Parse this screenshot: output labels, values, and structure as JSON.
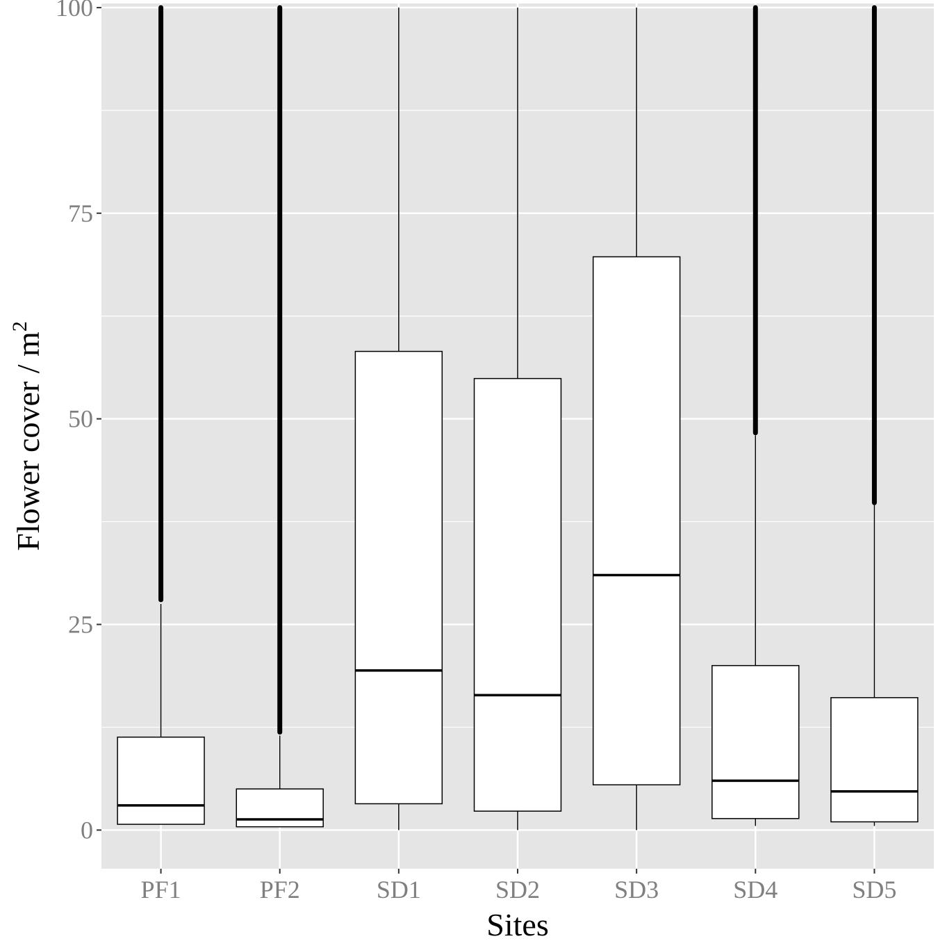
{
  "chart_data": {
    "type": "boxplot",
    "xlabel": "Sites",
    "ylabel": {
      "main": "Flower cover / m",
      "superscript": "2"
    },
    "ylim": [
      -4.7,
      100.5
    ],
    "yticks": [
      0,
      25,
      50,
      75,
      100
    ],
    "yticks_minor": [
      12.5,
      37.5,
      62.5,
      87.5
    ],
    "grid": true,
    "background": "#e5e5e5",
    "gridline_color": "#ffffff",
    "box_fill": "#ffffff",
    "line_color": "#000000",
    "tick_label_color": "#7f7f7f",
    "categories": [
      "PF1",
      "PF2",
      "SD1",
      "SD2",
      "SD3",
      "SD4",
      "SD5"
    ],
    "boxes": [
      {
        "site": "PF1",
        "whisker_low": 0.7,
        "q1": 0.7,
        "median": 3.0,
        "q3": 11.3,
        "whisker_high": 27.5,
        "outliers_from": 28.0,
        "outliers_to": 100
      },
      {
        "site": "PF2",
        "whisker_low": 0.4,
        "q1": 0.4,
        "median": 1.3,
        "q3": 5.0,
        "whisker_high": 11.5,
        "outliers_from": 11.9,
        "outliers_to": 100
      },
      {
        "site": "SD1",
        "whisker_low": 0.0,
        "q1": 3.2,
        "median": 19.4,
        "q3": 58.2,
        "whisker_high": 100
      },
      {
        "site": "SD2",
        "whisker_low": 0.0,
        "q1": 2.3,
        "median": 16.4,
        "q3": 54.9,
        "whisker_high": 100
      },
      {
        "site": "SD3",
        "whisker_low": 0.0,
        "q1": 5.5,
        "median": 31.0,
        "q3": 69.7,
        "whisker_high": 100
      },
      {
        "site": "SD4",
        "whisker_low": 0.5,
        "q1": 1.4,
        "median": 6.0,
        "q3": 20.0,
        "whisker_high": 48.0,
        "outliers_from": 48.3,
        "outliers_to": 100
      },
      {
        "site": "SD5",
        "whisker_low": 0.5,
        "q1": 1.0,
        "median": 4.7,
        "q3": 16.1,
        "whisker_high": 39.5,
        "outliers_from": 39.8,
        "outliers_to": 100
      }
    ]
  }
}
